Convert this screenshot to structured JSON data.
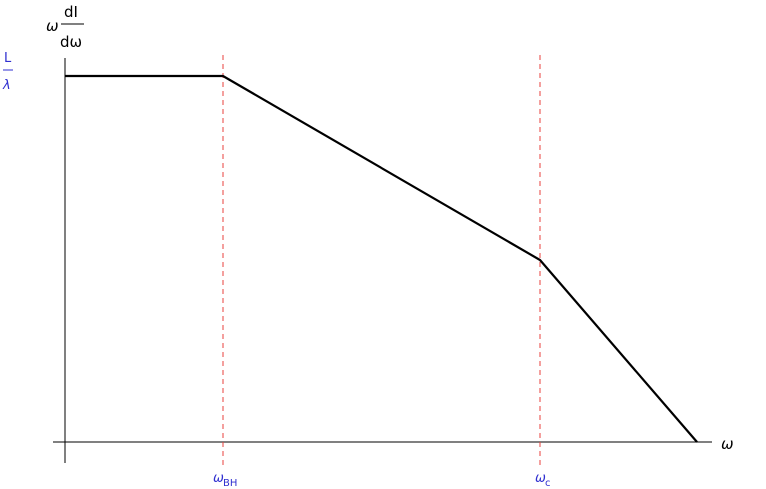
{
  "y_axis_label": {
    "prefix": "ω",
    "numerator": "dI",
    "denominator": "dω"
  },
  "x_axis_label": "ω",
  "plateau_level_label": {
    "numerator": "L",
    "denominator": "λ"
  },
  "markers": [
    {
      "symbol": "ω",
      "subscript": "BH"
    },
    {
      "symbol": "ω",
      "subscript": "c"
    }
  ],
  "colors": {
    "curve": "#000000",
    "axis": "#000000",
    "marker_line": "#e8413d",
    "annotation": "#2f2fd0"
  }
}
